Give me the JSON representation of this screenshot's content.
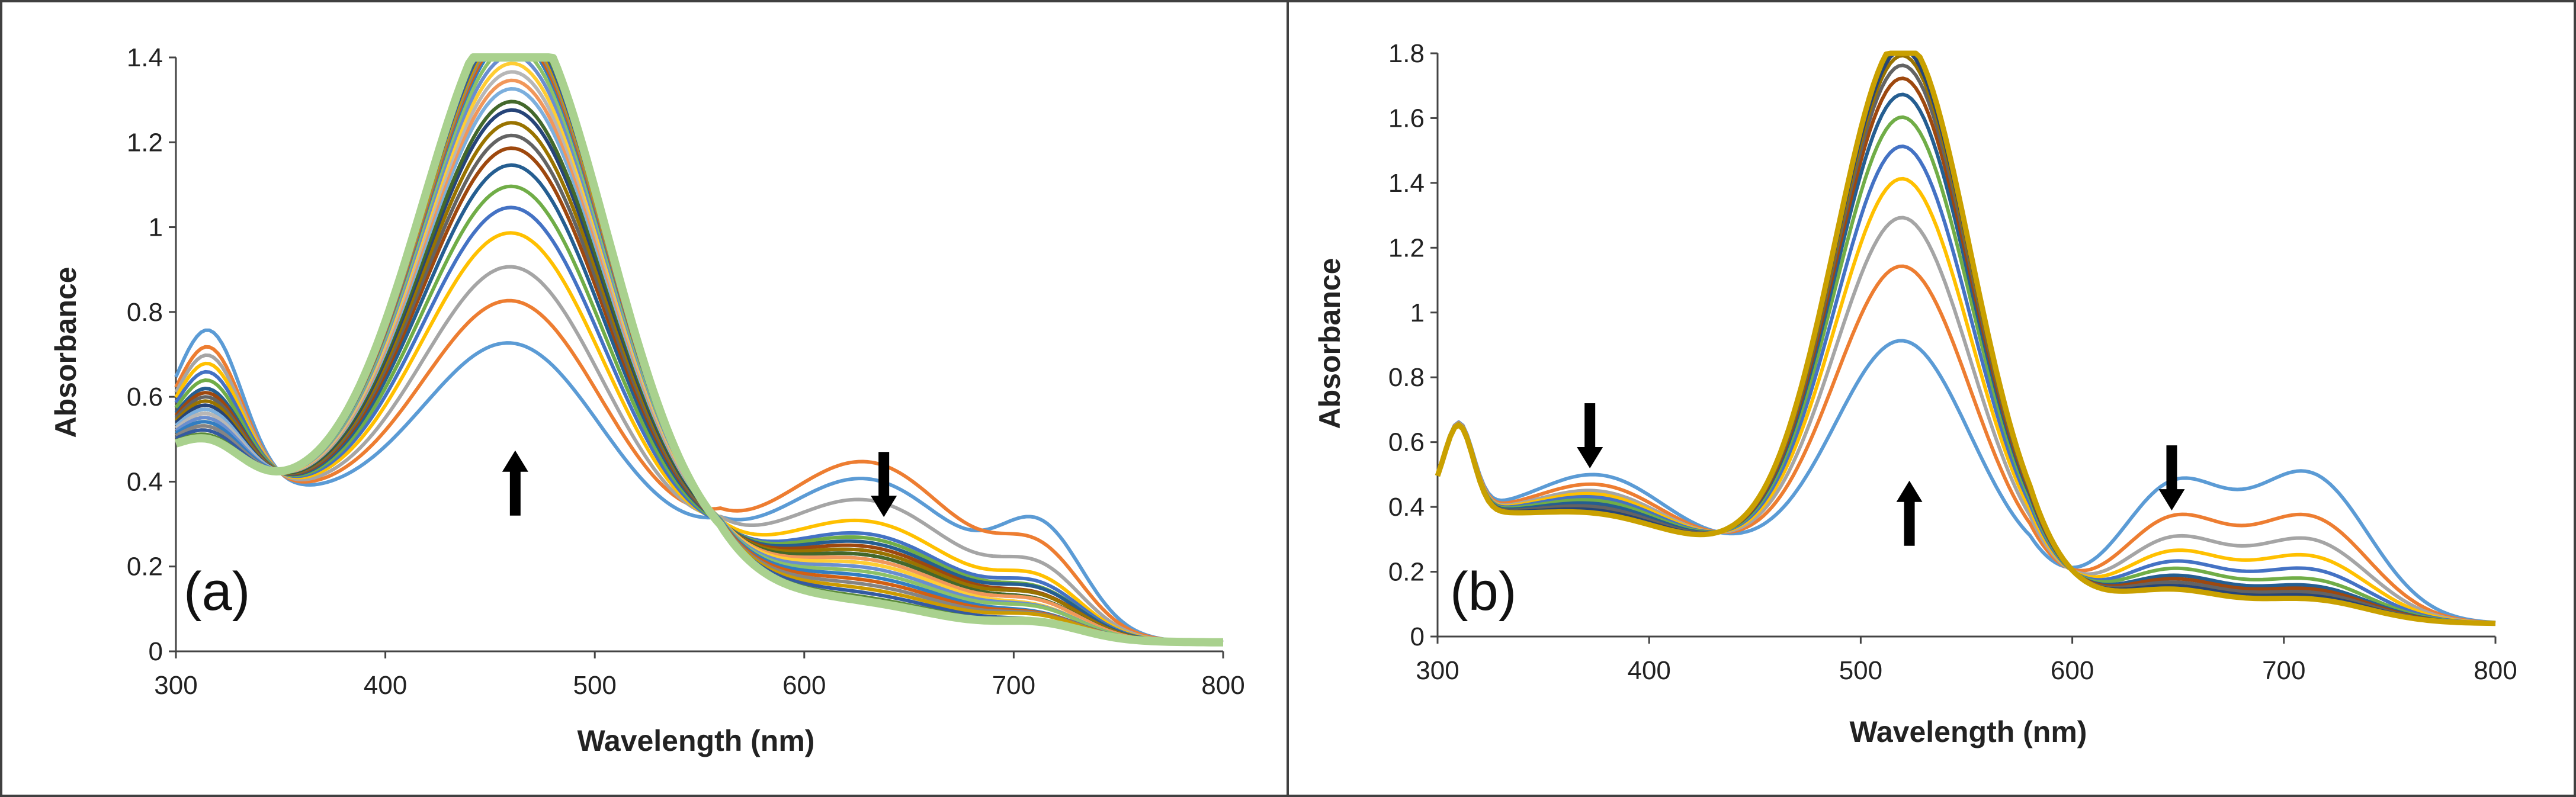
{
  "chart_data": [
    {
      "type": "line",
      "panel_label": "(a)",
      "xlabel": "Wavelength (nm)",
      "ylabel": "Absorbance",
      "xlim": [
        300,
        800
      ],
      "ylim": [
        0,
        1.4
      ],
      "xticks": [
        300,
        400,
        500,
        600,
        700,
        800
      ],
      "yticks": [
        0,
        0.2,
        0.4,
        0.6,
        0.8,
        1,
        1.2,
        1.4
      ],
      "ytick_labels": [
        "0",
        "0.2",
        "0.4",
        "0.6",
        "0.8",
        "1",
        "1.2",
        "1.4"
      ],
      "grid": false,
      "isosbestic_points": [
        [
          355,
          0.49
        ],
        [
          545,
          0.19
        ]
      ],
      "series_peaks": [
        {
          "color": "#5b9bd5",
          "uv_peak": 0.76,
          "vis_peak": 0.58,
          "nir_peak": 0.35,
          "shoulder": 0.21
        },
        {
          "color": "#ed7d31",
          "uv_peak": 0.72,
          "vis_peak": 0.68,
          "nir_peak": 0.39,
          "shoulder": 0.15
        },
        {
          "color": "#a5a5a5",
          "uv_peak": 0.7,
          "vis_peak": 0.76,
          "nir_peak": 0.3,
          "shoulder": 0.12
        },
        {
          "color": "#ffc000",
          "uv_peak": 0.68,
          "vis_peak": 0.84,
          "nir_peak": 0.25,
          "shoulder": 0.1
        },
        {
          "color": "#4472c4",
          "uv_peak": 0.66,
          "vis_peak": 0.9,
          "nir_peak": 0.22,
          "shoulder": 0.09
        },
        {
          "color": "#70ad47",
          "uv_peak": 0.64,
          "vis_peak": 0.95,
          "nir_peak": 0.21,
          "shoulder": 0.08
        },
        {
          "color": "#255e91",
          "uv_peak": 0.62,
          "vis_peak": 1.0,
          "nir_peak": 0.2,
          "shoulder": 0.08
        },
        {
          "color": "#9e480e",
          "uv_peak": 0.61,
          "vis_peak": 1.04,
          "nir_peak": 0.19,
          "shoulder": 0.07
        },
        {
          "color": "#636363",
          "uv_peak": 0.6,
          "vis_peak": 1.07,
          "nir_peak": 0.18,
          "shoulder": 0.07
        },
        {
          "color": "#997300",
          "uv_peak": 0.59,
          "vis_peak": 1.1,
          "nir_peak": 0.18,
          "shoulder": 0.07
        },
        {
          "color": "#264478",
          "uv_peak": 0.58,
          "vis_peak": 1.13,
          "nir_peak": 0.17,
          "shoulder": 0.06
        },
        {
          "color": "#43682b",
          "uv_peak": 0.57,
          "vis_peak": 1.15,
          "nir_peak": 0.17,
          "shoulder": 0.06
        },
        {
          "color": "#7cafdd",
          "uv_peak": 0.57,
          "vis_peak": 1.18,
          "nir_peak": 0.16,
          "shoulder": 0.06
        },
        {
          "color": "#f1975a",
          "uv_peak": 0.56,
          "vis_peak": 1.2,
          "nir_peak": 0.16,
          "shoulder": 0.06
        },
        {
          "color": "#b7b7b7",
          "uv_peak": 0.56,
          "vis_peak": 1.22,
          "nir_peak": 0.15,
          "shoulder": 0.05
        },
        {
          "color": "#ffcd33",
          "uv_peak": 0.55,
          "vis_peak": 1.24,
          "nir_peak": 0.15,
          "shoulder": 0.05
        },
        {
          "color": "#698ed0",
          "uv_peak": 0.55,
          "vis_peak": 1.26,
          "nir_peak": 0.14,
          "shoulder": 0.05
        },
        {
          "color": "#8cc168",
          "uv_peak": 0.54,
          "vis_peak": 1.28,
          "nir_peak": 0.13,
          "shoulder": 0.05
        },
        {
          "color": "#327dc2",
          "uv_peak": 0.54,
          "vis_peak": 1.3,
          "nir_peak": 0.12,
          "shoulder": 0.04
        },
        {
          "color": "#d26012",
          "uv_peak": 0.53,
          "vis_peak": 1.31,
          "nir_peak": 0.11,
          "shoulder": 0.04
        },
        {
          "color": "#848484",
          "uv_peak": 0.53,
          "vis_peak": 1.32,
          "nir_peak": 0.1,
          "shoulder": 0.04
        },
        {
          "color": "#cc9a00",
          "uv_peak": 0.52,
          "vis_peak": 1.33,
          "nir_peak": 0.09,
          "shoulder": 0.04
        },
        {
          "color": "#335aa1",
          "uv_peak": 0.52,
          "vis_peak": 1.34,
          "nir_peak": 0.08,
          "shoulder": 0.03
        },
        {
          "color": "#5a8a39",
          "uv_peak": 0.51,
          "vis_peak": 1.35,
          "nir_peak": 0.07,
          "shoulder": 0.03
        },
        {
          "color": "#a9d18e",
          "uv_peak": 0.5,
          "vis_peak": 1.37,
          "nir_peak": 0.06,
          "shoulder": 0.03
        }
      ]
    },
    {
      "type": "line",
      "panel_label": "(b)",
      "xlabel": "Wavelength (nm)",
      "ylabel": "Absorbance",
      "xlim": [
        300,
        800
      ],
      "ylim": [
        0,
        1.8
      ],
      "xticks": [
        300,
        400,
        500,
        600,
        700,
        800
      ],
      "yticks": [
        0,
        0.2,
        0.4,
        0.6,
        0.8,
        1,
        1.2,
        1.4,
        1.6,
        1.8
      ],
      "ytick_labels": [
        "0",
        "0.2",
        "0.4",
        "0.6",
        "0.8",
        "1",
        "1.2",
        "1.4",
        "1.6",
        "1.8"
      ],
      "grid": false,
      "isosbestic_points": [
        [
          432,
          0.43
        ],
        [
          578,
          0.4
        ]
      ],
      "series_peaks": [
        {
          "color": "#5b9bd5",
          "uv_peak": 0.56,
          "vis_peak": 0.76,
          "q1_peak": 0.39,
          "q2_peak": 0.45
        },
        {
          "color": "#ed7d31",
          "uv_peak": 0.53,
          "vis_peak": 0.99,
          "q1_peak": 0.29,
          "q2_peak": 0.32
        },
        {
          "color": "#a5a5a5",
          "uv_peak": 0.51,
          "vis_peak": 1.14,
          "q1_peak": 0.23,
          "q2_peak": 0.25
        },
        {
          "color": "#ffc000",
          "uv_peak": 0.5,
          "vis_peak": 1.26,
          "q1_peak": 0.19,
          "q2_peak": 0.2
        },
        {
          "color": "#4472c4",
          "uv_peak": 0.49,
          "vis_peak": 1.36,
          "q1_peak": 0.16,
          "q2_peak": 0.16
        },
        {
          "color": "#70ad47",
          "uv_peak": 0.48,
          "vis_peak": 1.45,
          "q1_peak": 0.14,
          "q2_peak": 0.13
        },
        {
          "color": "#255e91",
          "uv_peak": 0.47,
          "vis_peak": 1.52,
          "q1_peak": 0.12,
          "q2_peak": 0.11
        },
        {
          "color": "#9e480e",
          "uv_peak": 0.46,
          "vis_peak": 1.57,
          "q1_peak": 0.11,
          "q2_peak": 0.1
        },
        {
          "color": "#636363",
          "uv_peak": 0.46,
          "vis_peak": 1.61,
          "q1_peak": 0.1,
          "q2_peak": 0.09
        },
        {
          "color": "#997300",
          "uv_peak": 0.45,
          "vis_peak": 1.64,
          "q1_peak": 0.09,
          "q2_peak": 0.08
        },
        {
          "color": "#264478",
          "uv_peak": 0.45,
          "vis_peak": 1.66,
          "q1_peak": 0.09,
          "q2_peak": 0.08
        },
        {
          "color": "#43682b",
          "uv_peak": 0.44,
          "vis_peak": 1.68,
          "q1_peak": 0.08,
          "q2_peak": 0.07
        },
        {
          "color": "#c9a000",
          "uv_peak": 0.44,
          "vis_peak": 1.69,
          "q1_peak": 0.08,
          "q2_peak": 0.07
        }
      ]
    }
  ]
}
